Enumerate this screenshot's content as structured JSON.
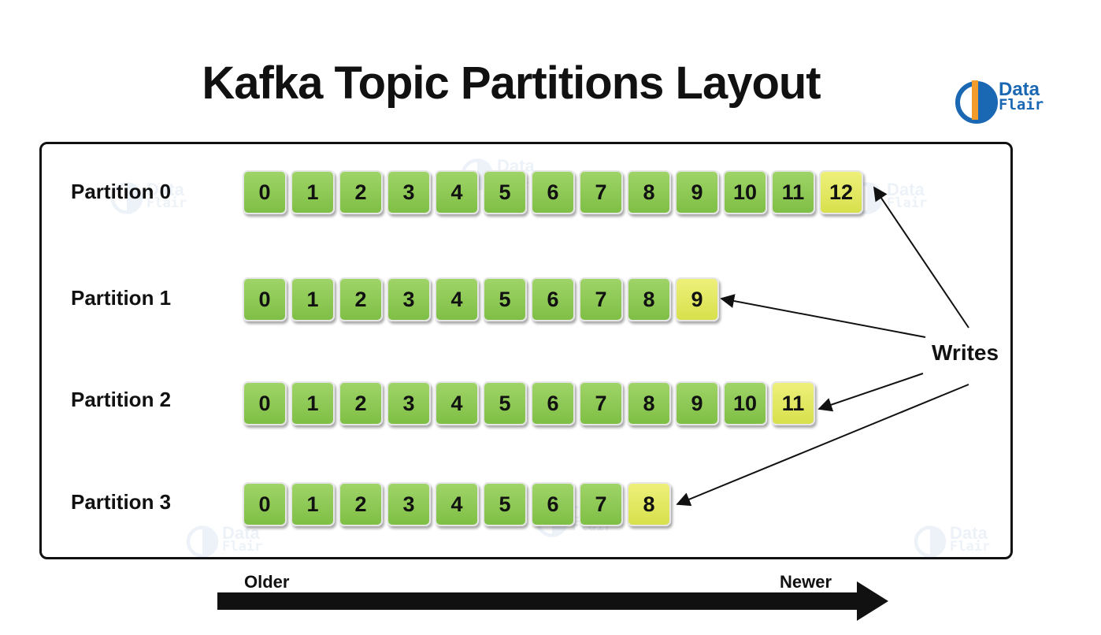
{
  "title": "Kafka Topic Partitions Layout",
  "logo": {
    "line1": "Data",
    "line2": "Flair"
  },
  "watermark": {
    "line1": "Data",
    "line2": "Flair"
  },
  "partitions": [
    {
      "label": "Partition 0",
      "offsets": [
        "0",
        "1",
        "2",
        "3",
        "4",
        "5",
        "6",
        "7",
        "8",
        "9",
        "10",
        "11",
        "12"
      ]
    },
    {
      "label": "Partition 1",
      "offsets": [
        "0",
        "1",
        "2",
        "3",
        "4",
        "5",
        "6",
        "7",
        "8",
        "9"
      ]
    },
    {
      "label": "Partition 2",
      "offsets": [
        "0",
        "1",
        "2",
        "3",
        "4",
        "5",
        "6",
        "7",
        "8",
        "9",
        "10",
        "11"
      ]
    },
    {
      "label": "Partition 3",
      "offsets": [
        "0",
        "1",
        "2",
        "3",
        "4",
        "5",
        "6",
        "7",
        "8"
      ]
    }
  ],
  "writes_label": "Writes",
  "timeline": {
    "older": "Older",
    "newer": "Newer"
  },
  "colors": {
    "record": "#8cc850",
    "latest_record": "#e2e65c",
    "brand": "#1a67b3",
    "text": "#111111"
  }
}
